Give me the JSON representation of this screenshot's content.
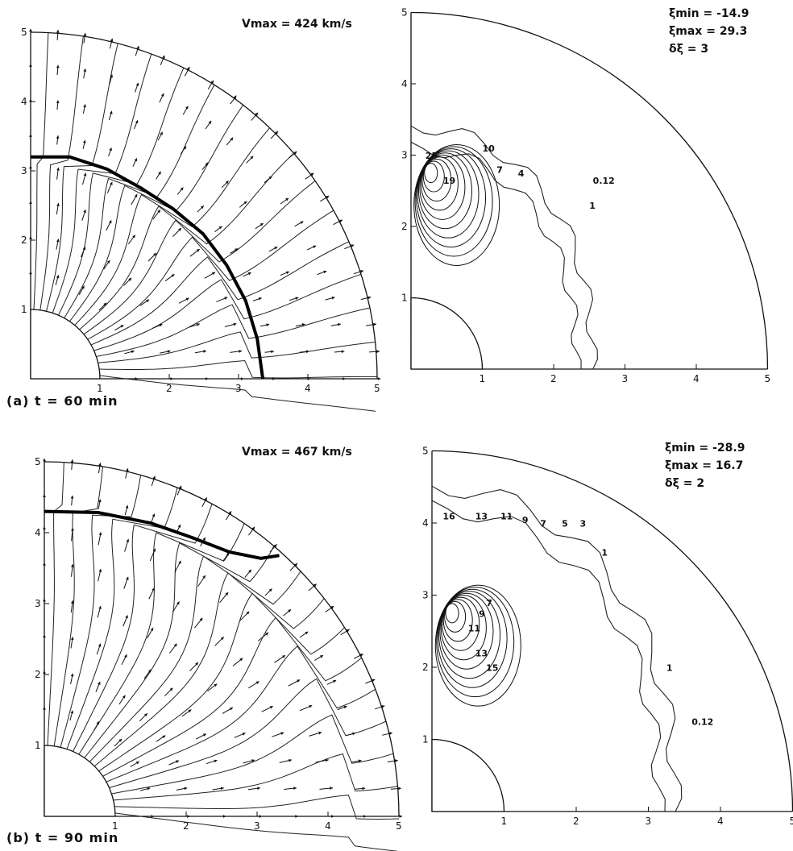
{
  "panels": {
    "a": {
      "caption": "(a)  t = 60 min",
      "vmax": "Vmax = 424  km/s",
      "xticks": [
        "1",
        "2",
        "3",
        "4",
        "5"
      ],
      "yticks": [
        "1",
        "2",
        "3",
        "4",
        "5"
      ],
      "contours": {
        "xi_min": "ξmin = -14.9",
        "xi_max": "ξmax = 29.3",
        "delta": "δξ = 3",
        "labels": [
          "25",
          "19",
          "10",
          "7",
          "4",
          "1",
          "0.12"
        ],
        "xticks": [
          "1",
          "2",
          "3",
          "4",
          "5"
        ],
        "yticks": [
          "1",
          "2",
          "3",
          "4",
          "5"
        ]
      }
    },
    "b": {
      "caption": "(b)  t = 90 min",
      "vmax": "Vmax = 467  km/s",
      "xticks": [
        "1",
        "2",
        "3",
        "4",
        "5"
      ],
      "yticks": [
        "1",
        "2",
        "3",
        "4",
        "5"
      ],
      "contours": {
        "xi_min": "ξmin = -28.9",
        "xi_max": "ξmax = 16.7",
        "delta": "δξ = 2",
        "labels": [
          "16",
          "13",
          "11",
          "9",
          "7",
          "5",
          "3",
          "1",
          "7",
          "9",
          "11",
          "13",
          "15",
          "0.12",
          "1"
        ],
        "xticks": [
          "1",
          "2",
          "3",
          "4",
          "5"
        ],
        "yticks": [
          "1",
          "2",
          "3",
          "4",
          "5"
        ]
      }
    }
  }
}
